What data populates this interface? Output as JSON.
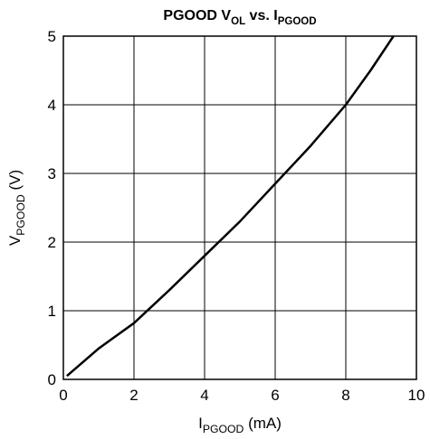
{
  "chart_data": {
    "type": "line",
    "title": [
      {
        "text": "PGOOD V"
      },
      {
        "text": "OL",
        "sub": true
      },
      {
        "text": " vs. I"
      },
      {
        "text": "PGOOD",
        "sub": true
      }
    ],
    "x_label": [
      {
        "text": "I"
      },
      {
        "text": "PGOOD",
        "sub": true
      },
      {
        "text": " (mA)"
      }
    ],
    "y_label": [
      {
        "text": "V"
      },
      {
        "text": "PGOOD",
        "sub": true
      },
      {
        "text": " (V)"
      }
    ],
    "xlim": [
      0,
      10
    ],
    "xticks": [
      0,
      2,
      4,
      6,
      8,
      10
    ],
    "ylim": [
      0,
      5
    ],
    "yticks": [
      0,
      1,
      2,
      3,
      4,
      5
    ],
    "grid": true,
    "series": [
      {
        "color": "#000000",
        "x": [
          0.1,
          1,
          2,
          3,
          4,
          5,
          6,
          7,
          8,
          8.7,
          9.35
        ],
        "values": [
          0.05,
          0.45,
          0.82,
          1.3,
          1.8,
          2.3,
          2.85,
          3.4,
          4.0,
          4.5,
          5.0
        ]
      }
    ]
  }
}
